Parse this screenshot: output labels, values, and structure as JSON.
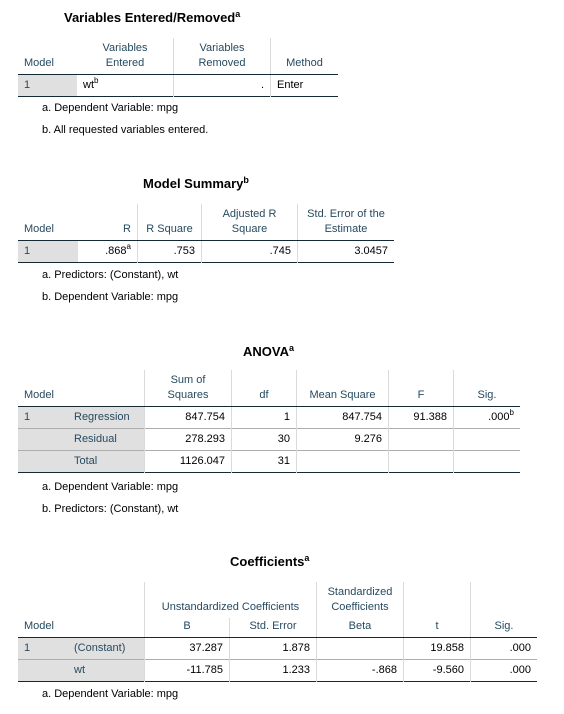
{
  "variables_entered": {
    "title": "Variables Entered/Removed",
    "title_sup": "a",
    "headers": {
      "model": "Model",
      "entered": "Variables Entered",
      "removed": "Variables Removed",
      "method": "Method"
    },
    "row": {
      "model": "1",
      "entered": "wt",
      "entered_sup": "b",
      "removed": ".",
      "method": "Enter"
    },
    "notes": [
      "a. Dependent Variable: mpg",
      "b. All requested variables entered."
    ]
  },
  "model_summary": {
    "title": "Model Summary",
    "title_sup": "b",
    "headers": {
      "model": "Model",
      "r": "R",
      "r_square": "R Square",
      "adj_r_square": "Adjusted R Square",
      "std_error": "Std. Error of the Estimate"
    },
    "row": {
      "model": "1",
      "r": ".868",
      "r_sup": "a",
      "r_square": ".753",
      "adj_r_square": ".745",
      "std_error": "3.0457"
    },
    "notes": [
      "a. Predictors: (Constant), wt",
      "b. Dependent Variable: mpg"
    ]
  },
  "anova": {
    "title": "ANOVA",
    "title_sup": "a",
    "headers": {
      "model": "Model",
      "ss": "Sum of Squares",
      "df": "df",
      "ms": "Mean Square",
      "f": "F",
      "sig": "Sig."
    },
    "rows": [
      {
        "model": "1",
        "label": "Regression",
        "ss": "847.754",
        "df": "1",
        "ms": "847.754",
        "f": "91.388",
        "sig": ".000",
        "sig_sup": "b"
      },
      {
        "model": "",
        "label": "Residual",
        "ss": "278.293",
        "df": "30",
        "ms": "9.276",
        "f": "",
        "sig": "",
        "sig_sup": ""
      },
      {
        "model": "",
        "label": "Total",
        "ss": "1126.047",
        "df": "31",
        "ms": "",
        "f": "",
        "sig": "",
        "sig_sup": ""
      }
    ],
    "notes": [
      "a. Dependent Variable: mpg",
      "b. Predictors: (Constant), wt"
    ]
  },
  "coefficients": {
    "title": "Coefficients",
    "title_sup": "a",
    "headers": {
      "model": "Model",
      "unstd": "Unstandardized Coefficients",
      "std": "Standardized Coefficients",
      "b": "B",
      "se": "Std. Error",
      "beta": "Beta",
      "t": "t",
      "sig": "Sig."
    },
    "rows": [
      {
        "model": "1",
        "label": "(Constant)",
        "b": "37.287",
        "se": "1.878",
        "beta": "",
        "t": "19.858",
        "sig": ".000"
      },
      {
        "model": "",
        "label": "wt",
        "b": "-11.785",
        "se": "1.233",
        "beta": "-.868",
        "t": "-9.560",
        "sig": ".000"
      }
    ],
    "notes": [
      "a. Dependent Variable: mpg"
    ]
  }
}
